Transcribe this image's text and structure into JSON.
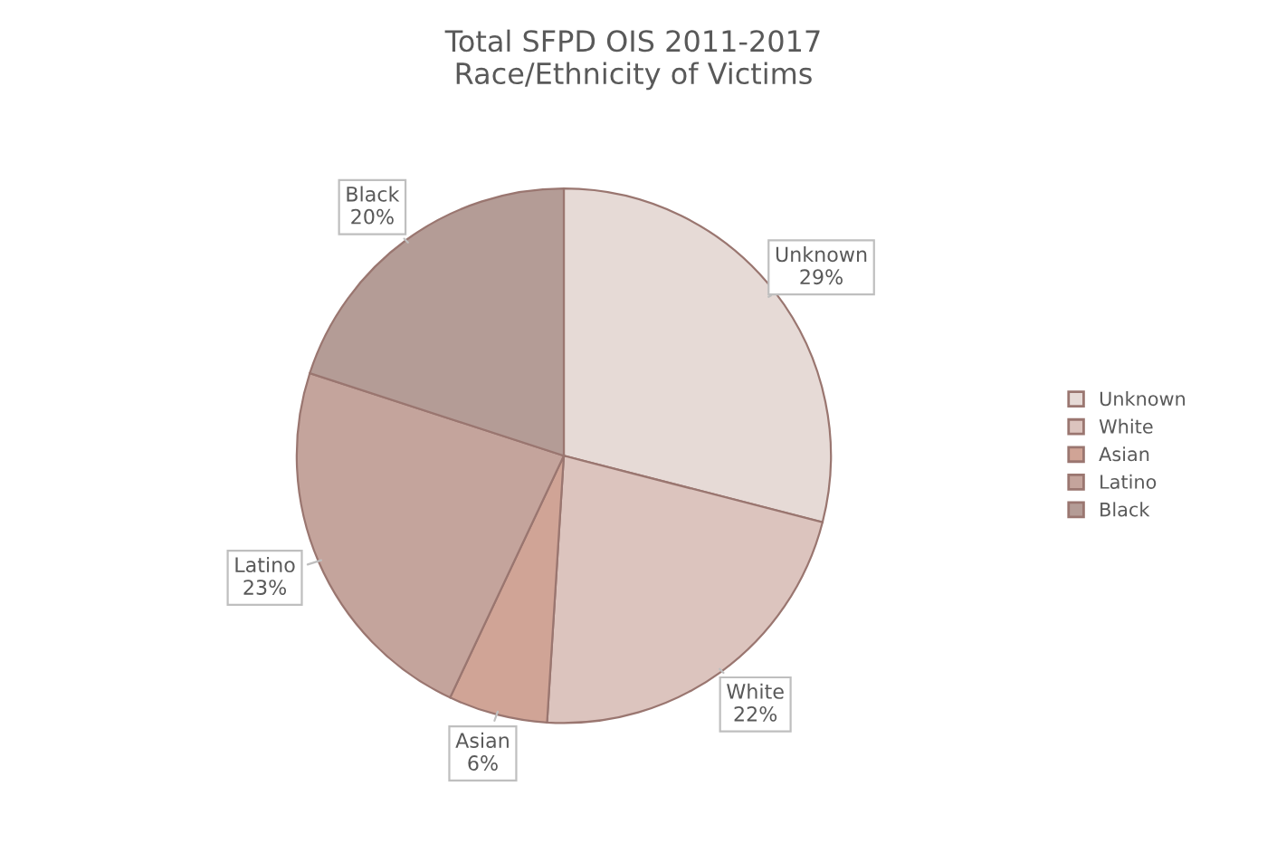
{
  "chart_data": {
    "type": "pie",
    "title": "Total SFPD OIS 2011-2017\nRace/Ethnicity of Victims",
    "categories": [
      "Unknown",
      "White",
      "Asian",
      "Latino",
      "Black"
    ],
    "values": [
      29,
      22,
      6,
      23,
      20
    ],
    "value_labels": [
      "29%",
      "22%",
      "6%",
      "23%",
      "20%"
    ],
    "colors": [
      "#e6dad6",
      "#dcc4be",
      "#d0a496",
      "#c4a49c",
      "#b49c96"
    ],
    "legend": "right"
  }
}
